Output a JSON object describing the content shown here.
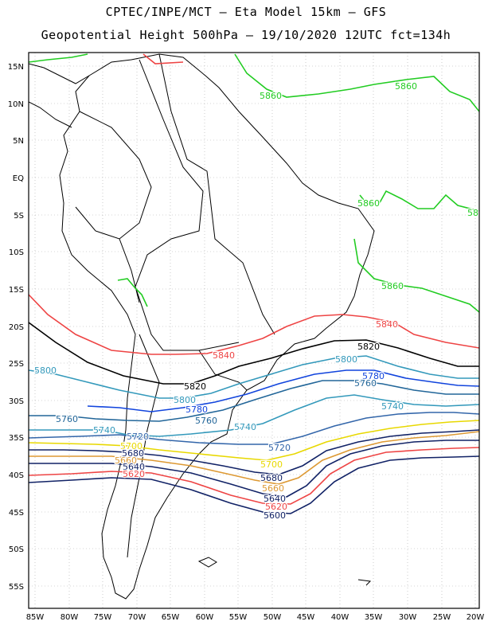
{
  "title_line1": "CPTEC/INPE/MCT –  Eta Model 15km – GFS",
  "title_line2": "Geopotential Height 500hPa – 19/10/2020 12UTC fct=134h",
  "lat_labels": [
    "15N",
    "10N",
    "5N",
    "EQ",
    "5S",
    "10S",
    "15S",
    "20S",
    "25S",
    "30S",
    "35S",
    "40S",
    "45S",
    "50S",
    "55S"
  ],
  "lon_labels": [
    "85W",
    "80W",
    "75W",
    "70W",
    "65W",
    "60W",
    "55W",
    "50W",
    "45W",
    "40W",
    "35W",
    "30W",
    "25W",
    "20W"
  ],
  "contour_labels": [
    {
      "text": "5860",
      "color": "#22cc22"
    },
    {
      "text": "5860",
      "color": "#22cc22"
    },
    {
      "text": "5860",
      "color": "#22cc22"
    },
    {
      "text": "5860",
      "color": "#22cc22"
    },
    {
      "text": "58",
      "color": "#22cc22"
    },
    {
      "text": "5840",
      "color": "#ee4444"
    },
    {
      "text": "5840",
      "color": "#ee4444"
    },
    {
      "text": "5820",
      "color": "#000000"
    },
    {
      "text": "5820",
      "color": "#000000"
    },
    {
      "text": "5800",
      "color": "#3399bb"
    },
    {
      "text": "5800",
      "color": "#3399bb"
    },
    {
      "text": "5800",
      "color": "#3399bb"
    },
    {
      "text": "5780",
      "color": "#1144dd"
    },
    {
      "text": "5780",
      "color": "#1144dd"
    },
    {
      "text": "5760",
      "color": "#226699"
    },
    {
      "text": "5760",
      "color": "#226699"
    },
    {
      "text": "5760",
      "color": "#226699"
    },
    {
      "text": "5740",
      "color": "#3399bb"
    },
    {
      "text": "5740",
      "color": "#3399bb"
    },
    {
      "text": "5740",
      "color": "#3399bb"
    },
    {
      "text": "5720",
      "color": "#3366aa"
    },
    {
      "text": "5720",
      "color": "#3366aa"
    },
    {
      "text": "5700",
      "color": "#e8d800"
    },
    {
      "text": "5700",
      "color": "#e8d800"
    },
    {
      "text": "5680",
      "color": "#112266"
    },
    {
      "text": "5680",
      "color": "#112266"
    },
    {
      "text": "5660",
      "color": "#dd9933"
    },
    {
      "text": "5660",
      "color": "#dd9933"
    },
    {
      "text": "5640",
      "color": "#112266"
    },
    {
      "text": "5640",
      "color": "#112266"
    },
    {
      "text": "5620",
      "color": "#ee4444"
    },
    {
      "text": "5620",
      "color": "#ee4444"
    },
    {
      "text": "5600",
      "color": "#112266"
    }
  ]
}
